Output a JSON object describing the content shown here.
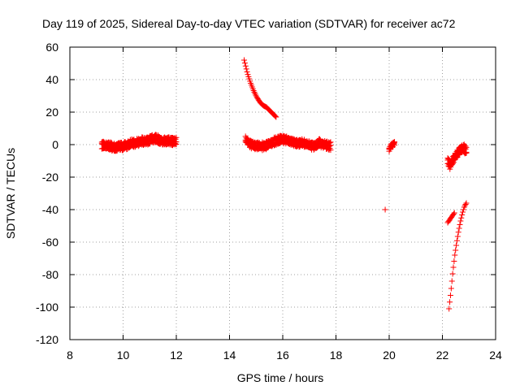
{
  "chart_data": {
    "type": "scatter",
    "title": "Day 119 of 2025, Sidereal Day-to-day VTEC variation (SDTVAR) for receiver ac72",
    "xlabel": "GPS time / hours",
    "ylabel": "SDTVAR / TECUs",
    "xlim": [
      8,
      24
    ],
    "ylim": [
      -120,
      60
    ],
    "xticks": [
      8,
      10,
      12,
      14,
      16,
      18,
      20,
      22,
      24
    ],
    "yticks": [
      -120,
      -100,
      -80,
      -60,
      -40,
      -20,
      0,
      20,
      40,
      60
    ],
    "grid": true,
    "marker": "+",
    "color": "#ff0000",
    "series": [
      {
        "name": "SDTVAR",
        "segments": [
          {
            "x0": 9.2,
            "x1": 12.0,
            "y": [
              0,
              -1,
              -1,
              -2,
              -1,
              -1,
              0,
              1,
              1,
              2,
              2,
              3,
              4,
              3,
              2,
              2,
              2,
              2
            ],
            "spread": 3
          },
          {
            "x0": 14.55,
            "x1": 15.75,
            "y": [
              52,
              44,
              38,
              33,
              29,
              26,
              24,
              23,
              21,
              19,
              17
            ],
            "spread": 1
          },
          {
            "x0": 14.6,
            "x1": 17.8,
            "y": [
              3,
              0,
              -1,
              -1,
              0,
              2,
              3,
              3,
              2,
              1,
              1,
              0,
              -1,
              1,
              0,
              -1
            ],
            "spread": 3
          },
          {
            "x0": 20.0,
            "x1": 20.2,
            "y": [
              -3,
              -1,
              0,
              1
            ],
            "spread": 2
          },
          {
            "x0": 22.2,
            "x1": 22.9,
            "y": [
              -10,
              -13,
              -9,
              -7,
              -5,
              -3,
              -2,
              -4
            ],
            "spread": 3
          },
          {
            "x0": 22.2,
            "x1": 22.45,
            "y": [
              -48,
              -46,
              -44,
              -42
            ],
            "spread": 1
          },
          {
            "x0": 22.25,
            "x1": 22.9,
            "y": [
              -101,
              -90,
              -78,
              -68,
              -60,
              -53,
              -47,
              -42,
              -38,
              -36
            ],
            "spread": 1
          }
        ],
        "points": [
          {
            "x": 19.85,
            "y": -40
          }
        ]
      }
    ]
  }
}
